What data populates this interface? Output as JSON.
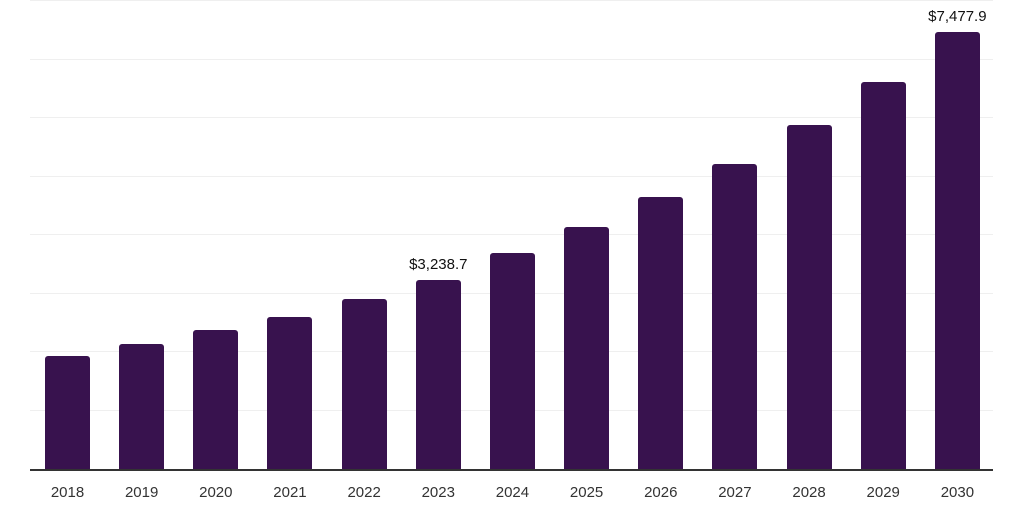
{
  "chart": {
    "background": "#ffffff",
    "axis_color": "#333333",
    "gridline_color": "#efefef",
    "tick_label_color": "#333333",
    "data_label_color": "#111111"
  },
  "chart_data": {
    "type": "bar",
    "title": "",
    "xlabel": "",
    "ylabel": "",
    "categories": [
      "2018",
      "2019",
      "2020",
      "2021",
      "2022",
      "2023",
      "2024",
      "2025",
      "2026",
      "2027",
      "2028",
      "2029",
      "2030"
    ],
    "values": [
      1930,
      2145,
      2370,
      2605,
      2900,
      3238.7,
      3690,
      4140,
      4645,
      5220,
      5880,
      6620,
      7477.9
    ],
    "data_labels": {
      "2023": "$3,238.7",
      "2030": "$7,477.9"
    },
    "ylim": [
      0,
      8000
    ],
    "gridline_interval": 1000,
    "grid": true,
    "legend": false,
    "bar_color": "#38124E"
  }
}
